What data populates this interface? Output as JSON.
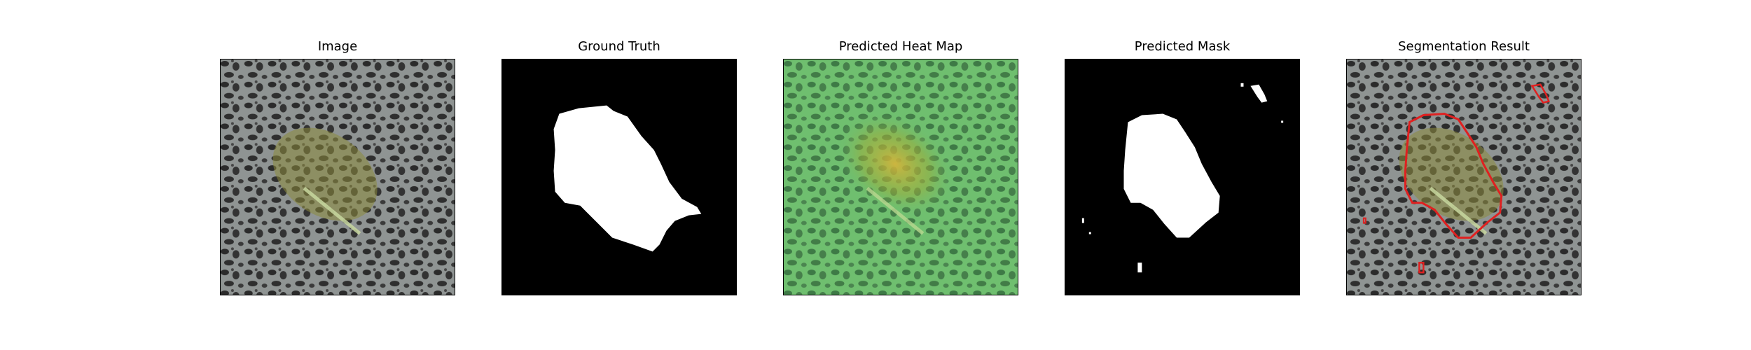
{
  "figure": {
    "panels": [
      {
        "title": "Image"
      },
      {
        "title": "Ground Truth"
      },
      {
        "title": "Predicted Heat Map"
      },
      {
        "title": "Predicted Mask"
      },
      {
        "title": "Segmentation Result"
      }
    ]
  },
  "colors": {
    "background_gray": "#8f9493",
    "spot_dark": "#2b2b2b",
    "object_tint": "#8c8a3c",
    "mask_white": "#ffffff",
    "mask_black": "#000000",
    "heat_green": "#6fbf6f",
    "heat_hot": "#d7b43a",
    "contour_red": "#e02020"
  }
}
